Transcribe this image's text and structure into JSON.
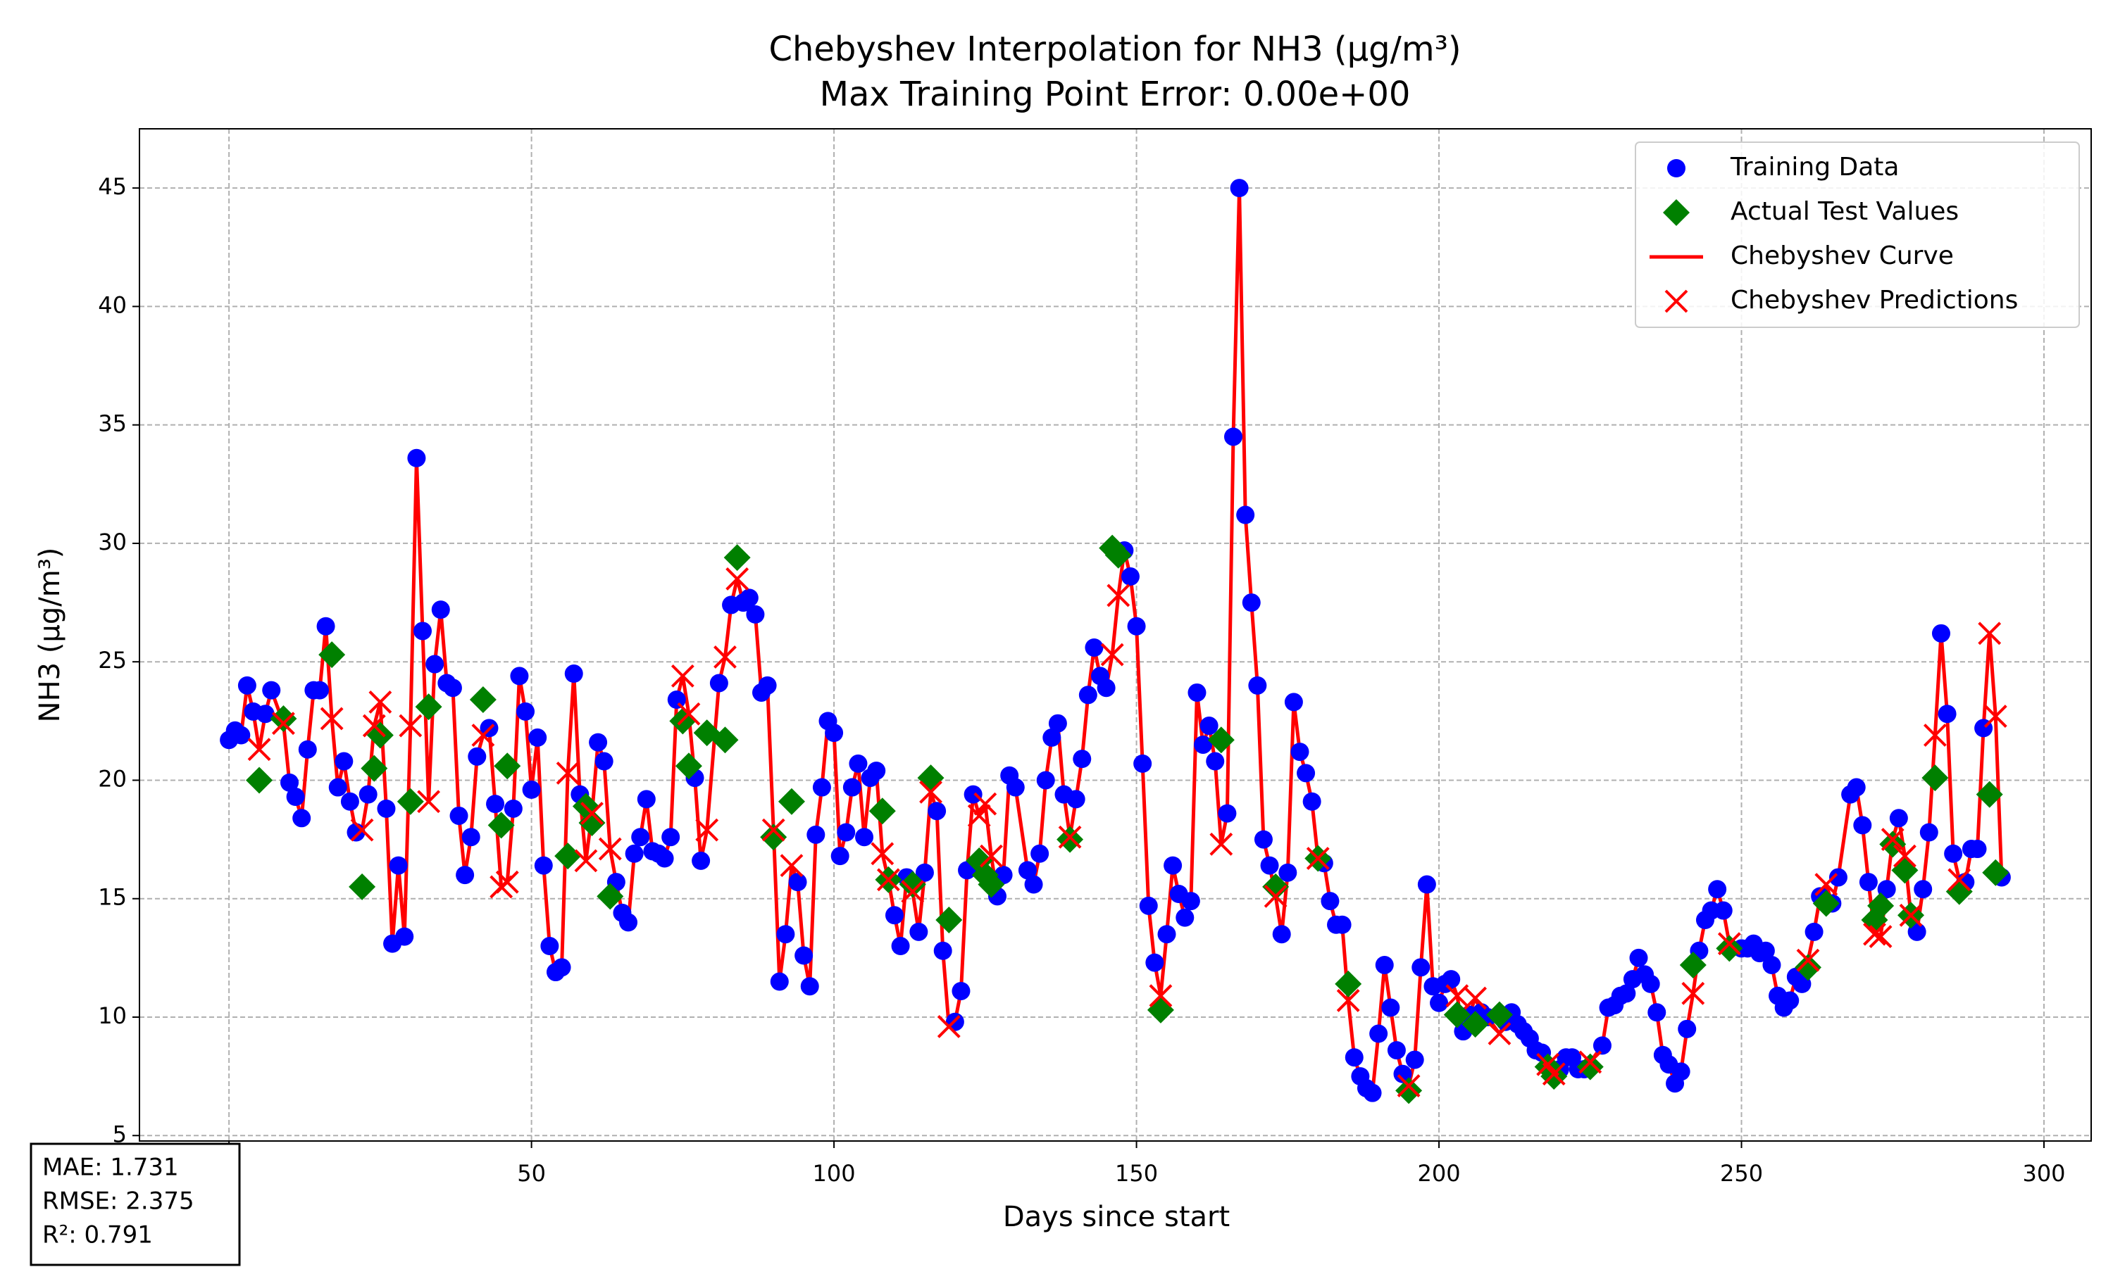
{
  "chart_data": {
    "type": "scatter",
    "title": "Chebyshev Interpolation for NH3 (µg/m³)",
    "subtitle": "Max Training Point Error: 0.00e+00",
    "xlabel": "Days since start",
    "ylabel": "NH3 (µg/m³)",
    "xlim": [
      -14.8,
      307.8
    ],
    "ylim": [
      4.77,
      47.5
    ],
    "xticks": [
      0,
      50,
      100,
      150,
      200,
      250,
      300
    ],
    "yticks": [
      5,
      10,
      15,
      20,
      25,
      30,
      35,
      40,
      45
    ],
    "grid": true,
    "legend": "upper right",
    "annotations": [
      "MAE: 1.731",
      "RMSE: 2.375",
      "R²: 0.791"
    ],
    "series": [
      {
        "name": "Training Data",
        "color": "#0000ff",
        "marker": "o",
        "x": [
          0,
          1,
          2,
          3,
          4,
          6,
          7,
          10,
          11,
          12,
          13,
          14,
          15,
          16,
          18,
          19,
          20,
          21,
          23,
          26,
          27,
          28,
          29,
          31,
          32,
          34,
          35,
          36,
          37,
          38,
          39,
          40,
          41,
          43,
          44,
          47,
          48,
          49,
          50,
          51,
          52,
          53,
          54,
          55,
          57,
          58,
          61,
          62,
          64,
          65,
          66,
          67,
          68,
          69,
          70,
          71,
          72,
          73,
          74,
          77,
          78,
          81,
          83,
          85,
          86,
          87,
          88,
          89,
          91,
          92,
          94,
          95,
          96,
          97,
          98,
          99,
          100,
          101,
          102,
          103,
          104,
          105,
          106,
          107,
          110,
          111,
          112,
          114,
          115,
          117,
          118,
          120,
          121,
          122,
          123,
          127,
          128,
          129,
          130,
          132,
          133,
          134,
          135,
          136,
          137,
          138,
          140,
          141,
          142,
          143,
          144,
          145,
          148,
          149,
          150,
          151,
          152,
          153,
          155,
          156,
          157,
          158,
          159,
          160,
          161,
          162,
          163,
          165,
          166,
          167,
          168,
          169,
          170,
          171,
          172,
          174,
          175,
          176,
          177,
          178,
          179,
          181,
          182,
          183,
          184,
          186,
          187,
          188,
          189,
          190,
          191,
          192,
          193,
          194,
          196,
          197,
          198,
          199,
          200,
          201,
          202,
          204,
          205,
          207,
          208,
          211,
          212,
          213,
          214,
          215,
          216,
          217,
          220,
          221,
          222,
          223,
          224,
          227,
          228,
          229,
          230,
          231,
          232,
          233,
          234,
          235,
          236,
          237,
          238,
          239,
          240,
          241,
          243,
          244,
          245,
          246,
          247,
          250,
          251,
          252,
          253,
          254,
          255,
          256,
          257,
          258,
          259,
          260,
          262,
          263,
          265,
          266,
          268,
          269,
          270,
          271,
          274,
          276,
          279,
          280,
          281,
          283,
          284,
          285,
          287,
          288,
          289,
          290,
          293
        ],
        "values": [
          21.7,
          22.1,
          21.9,
          24.0,
          22.9,
          22.8,
          23.8,
          19.9,
          19.3,
          18.4,
          21.3,
          23.8,
          23.8,
          26.5,
          19.7,
          20.8,
          19.1,
          17.8,
          19.4,
          18.8,
          13.1,
          16.4,
          13.4,
          33.6,
          26.3,
          24.9,
          27.2,
          24.1,
          23.9,
          18.5,
          16.0,
          17.6,
          21.0,
          22.2,
          19.0,
          18.8,
          24.4,
          22.9,
          19.6,
          21.8,
          16.4,
          13.0,
          11.9,
          12.1,
          24.5,
          19.4,
          21.6,
          20.8,
          15.7,
          14.4,
          14.0,
          16.9,
          17.6,
          19.2,
          17.0,
          16.9,
          16.7,
          17.6,
          23.4,
          20.1,
          16.6,
          24.1,
          27.4,
          27.5,
          27.7,
          27.0,
          23.7,
          24.0,
          11.5,
          13.5,
          15.7,
          12.6,
          11.3,
          17.7,
          19.7,
          22.5,
          22.0,
          16.8,
          17.8,
          19.7,
          20.7,
          17.6,
          20.1,
          20.4,
          14.3,
          13.0,
          15.9,
          13.6,
          16.1,
          18.7,
          12.8,
          9.8,
          11.1,
          16.2,
          19.4,
          15.1,
          16.0,
          20.2,
          19.7,
          16.2,
          15.6,
          16.9,
          20.0,
          21.8,
          22.4,
          19.4,
          19.2,
          20.9,
          23.6,
          25.6,
          24.4,
          23.9,
          29.7,
          28.6,
          26.5,
          20.7,
          14.7,
          12.3,
          13.5,
          16.4,
          15.2,
          14.2,
          14.9,
          23.7,
          21.5,
          22.3,
          20.8,
          18.6,
          34.5,
          45.0,
          31.2,
          27.5,
          24.0,
          17.5,
          16.4,
          13.5,
          16.1,
          23.3,
          21.2,
          20.3,
          19.1,
          16.5,
          14.9,
          13.9,
          13.9,
          8.3,
          7.5,
          7.0,
          6.8,
          9.3,
          12.2,
          10.4,
          8.6,
          7.6,
          8.2,
          12.1,
          15.6,
          11.3,
          10.6,
          11.4,
          11.6,
          9.4,
          10.1,
          10.2,
          10.0,
          9.8,
          10.2,
          9.7,
          9.4,
          9.1,
          8.6,
          8.5,
          7.8,
          8.3,
          8.3,
          7.8,
          7.8,
          8.8,
          10.4,
          10.5,
          10.9,
          11.0,
          11.6,
          12.5,
          11.8,
          11.4,
          10.2,
          8.4,
          8.0,
          7.2,
          7.7,
          9.5,
          12.8,
          14.1,
          14.5,
          15.4,
          14.5,
          12.9,
          12.9,
          13.1,
          12.7,
          12.8,
          12.2,
          10.9,
          10.4,
          10.7,
          11.7,
          11.4,
          13.6,
          15.1,
          14.8,
          15.9,
          19.4,
          19.7,
          18.1,
          15.7,
          15.4,
          18.4,
          13.6,
          15.4,
          17.8,
          26.2,
          22.8,
          16.9,
          15.7,
          17.1,
          17.1,
          22.2,
          15.9
        ]
      },
      {
        "name": "Actual Test Values",
        "color": "#008000",
        "marker": "D",
        "x": [
          5,
          9,
          17,
          22,
          24,
          25,
          30,
          33,
          42,
          45,
          46,
          56,
          59,
          60,
          63,
          75,
          76,
          79,
          82,
          84,
          90,
          93,
          108,
          109,
          113,
          116,
          119,
          124,
          125,
          126,
          139,
          146,
          147,
          154,
          164,
          173,
          180,
          185,
          195,
          203,
          206,
          210,
          218,
          219,
          225,
          242,
          248,
          261,
          264,
          272,
          273,
          275,
          277,
          278,
          282,
          286,
          291,
          292
        ],
        "values": [
          20.0,
          22.6,
          25.3,
          15.5,
          20.5,
          21.9,
          19.1,
          23.1,
          23.4,
          18.1,
          20.6,
          16.8,
          18.9,
          18.2,
          15.1,
          22.5,
          20.6,
          22.0,
          21.7,
          29.4,
          17.6,
          19.1,
          18.7,
          15.8,
          15.6,
          20.1,
          14.1,
          16.6,
          16.0,
          15.6,
          17.5,
          29.8,
          29.5,
          10.3,
          21.7,
          15.5,
          16.7,
          11.4,
          6.9,
          10.1,
          9.7,
          10.1,
          7.9,
          7.5,
          7.9,
          12.2,
          12.9,
          12.1,
          14.8,
          14.1,
          14.7,
          17.3,
          16.2,
          14.3,
          20.1,
          15.3,
          19.4,
          16.1
        ]
      },
      {
        "name": "Chebyshev Curve",
        "color": "#ff0000",
        "linestyle": "-"
      },
      {
        "name": "Chebyshev Predictions",
        "color": "#ff0000",
        "marker": "x",
        "x": [
          5,
          9,
          17,
          22,
          24,
          25,
          30,
          33,
          42,
          45,
          46,
          56,
          59,
          60,
          63,
          75,
          76,
          79,
          82,
          84,
          90,
          93,
          108,
          109,
          113,
          116,
          119,
          124,
          125,
          126,
          139,
          146,
          147,
          154,
          164,
          173,
          180,
          185,
          195,
          203,
          206,
          210,
          218,
          219,
          225,
          242,
          248,
          261,
          264,
          272,
          273,
          275,
          277,
          278,
          282,
          286,
          291,
          292
        ],
        "values": [
          21.3,
          22.4,
          22.6,
          17.9,
          22.3,
          23.3,
          22.3,
          19.1,
          21.9,
          15.5,
          15.7,
          20.3,
          16.6,
          18.6,
          17.1,
          24.4,
          22.8,
          17.9,
          25.2,
          28.5,
          17.9,
          16.4,
          16.9,
          15.8,
          15.3,
          19.5,
          9.6,
          18.5,
          19.0,
          16.8,
          17.6,
          25.3,
          27.8,
          10.9,
          17.3,
          15.1,
          16.7,
          10.7,
          7.1,
          10.9,
          10.8,
          9.3,
          8.0,
          7.6,
          8.1,
          11.0,
          13.1,
          12.4,
          15.6,
          13.5,
          13.4,
          17.5,
          16.8,
          14.3,
          21.9,
          15.8,
          26.2,
          22.7
        ]
      }
    ]
  }
}
